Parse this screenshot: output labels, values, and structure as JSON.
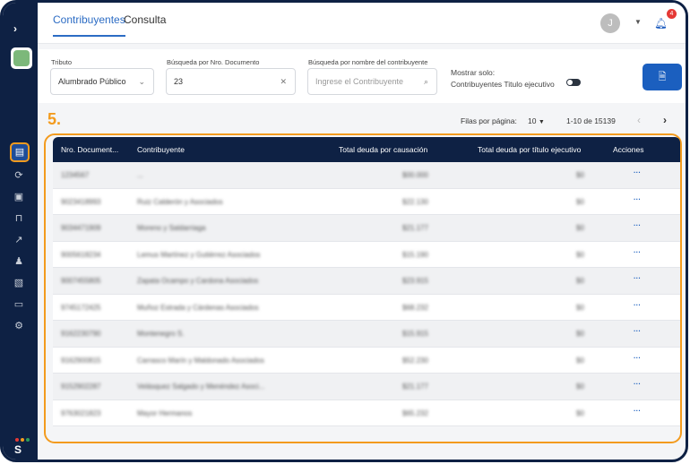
{
  "tabs": [
    "Contribuyentes",
    "Consulta"
  ],
  "user": {
    "initial": "J",
    "notifications": "4"
  },
  "filters": {
    "tributo_label": "Tributo",
    "tributo_value": "Alumbrado Público",
    "doc_label": "Búsqueda por Nro. Documento",
    "doc_value": "23",
    "name_label": "Búsqueda por nombre del contribuyente",
    "name_placeholder": "Ingrese el Contribuyente",
    "mostrar_label": "Mostrar solo:",
    "toggle_label": "Contribuyentes Titulo ejecutivo"
  },
  "step_marker": "5.",
  "pagination": {
    "rows_label": "Filas por página:",
    "rows_value": "10",
    "range": "1-10 de 15139"
  },
  "table": {
    "headers": [
      "Nro. Document...",
      "Contribuyente",
      "Total deuda por causación",
      "Total deuda por título ejecutivo",
      "Acciones"
    ],
    "rows": [
      [
        "1234567",
        "...",
        "$00.000",
        "$0",
        "···"
      ],
      [
        "9023418993",
        "Ruiz Calderón y Asociados",
        "$22.130",
        "$0",
        "···"
      ],
      [
        "9034471909",
        "Moreno y Saldarriaga",
        "$21.177",
        "$0",
        "···"
      ],
      [
        "9005618234",
        "Lemus Martínez y Gutiérrez Asociados",
        "$15.190",
        "$0",
        "···"
      ],
      [
        "9007455805",
        "Zapata Ocampo y Cardona Asociados",
        "$23.915",
        "$0",
        "···"
      ],
      [
        "9745172425",
        "Muñoz Estrada y Cárdenas Asociados",
        "$68.232",
        "$0",
        "···"
      ],
      [
        "9162230790",
        "Montenegro S.",
        "$15.915",
        "$0",
        "···"
      ],
      [
        "9162900815",
        "Carrasco Marín y Maldonado Asociados",
        "$52.230",
        "$0",
        "···"
      ],
      [
        "9152902287",
        "Velásquez Salgado y Menéndez Asoci...",
        "$21.177",
        "$0",
        "···"
      ],
      [
        "9763021823",
        "Mayor Hermanos",
        "$65.232",
        "$0",
        "···"
      ]
    ]
  }
}
